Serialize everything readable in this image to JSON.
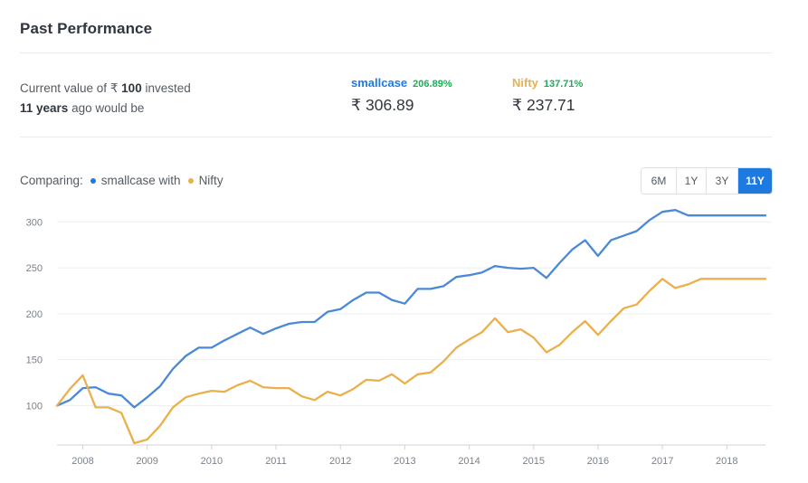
{
  "header": {
    "title": "Past Performance"
  },
  "summary": {
    "line1_prefix": "Current value of ",
    "currency": "₹",
    "amount": "100",
    "line1_suffix": " invested",
    "years": "11 years",
    "line2_suffix": " ago would be"
  },
  "stats": [
    {
      "name": "smallcase",
      "pct": "206.89%",
      "value": "₹ 306.89",
      "color": "#1f7ae0"
    },
    {
      "name": "Nifty",
      "pct": "137.71%",
      "value": "₹ 237.71",
      "color": "#e9b04c"
    }
  ],
  "comparing": {
    "label": "Comparing:",
    "series_a": "smallcase with",
    "series_b": "Nifty"
  },
  "periods": [
    {
      "label": "6M",
      "active": false
    },
    {
      "label": "1Y",
      "active": false
    },
    {
      "label": "3Y",
      "active": false
    },
    {
      "label": "11Y",
      "active": true
    }
  ],
  "chart_data": {
    "type": "line",
    "title": "",
    "xlabel": "",
    "ylabel": "",
    "x_ticks": [
      "2008",
      "2009",
      "2010",
      "2011",
      "2012",
      "2013",
      "2014",
      "2015",
      "2016",
      "2017",
      "2018"
    ],
    "y_ticks": [
      100,
      150,
      200,
      250,
      300
    ],
    "xlim": [
      2007.6,
      2018.6
    ],
    "ylim": [
      57,
      323
    ],
    "grid": "horizontal",
    "legend": "none",
    "series": [
      {
        "name": "smallcase",
        "color": "#4a89d6",
        "x": [
          2007.6,
          2007.8,
          2008.0,
          2008.2,
          2008.4,
          2008.6,
          2008.8,
          2009.0,
          2009.2,
          2009.4,
          2009.6,
          2009.8,
          2010.0,
          2010.2,
          2010.4,
          2010.6,
          2010.8,
          2011.0,
          2011.2,
          2011.4,
          2011.6,
          2011.8,
          2012.0,
          2012.2,
          2012.4,
          2012.6,
          2012.8,
          2013.0,
          2013.2,
          2013.4,
          2013.6,
          2013.8,
          2014.0,
          2014.2,
          2014.4,
          2014.6,
          2014.8,
          2015.0,
          2015.2,
          2015.4,
          2015.6,
          2015.8,
          2016.0,
          2016.2,
          2016.4,
          2016.6,
          2016.8,
          2017.0,
          2017.2,
          2017.4,
          2017.6,
          2017.8,
          2018.0,
          2018.2,
          2018.4,
          2018.6
        ],
        "y": [
          100,
          106,
          119,
          120,
          113,
          111,
          98,
          109,
          121,
          140,
          154,
          163,
          163,
          171,
          178,
          185,
          178,
          184,
          189,
          191,
          191,
          202,
          205,
          215,
          223,
          223,
          215,
          211,
          227,
          227,
          230,
          240,
          242,
          245,
          252,
          250,
          249,
          250,
          239,
          255,
          270,
          280,
          263,
          280,
          285,
          290,
          302,
          311,
          313,
          307,
          307,
          307,
          307,
          307,
          307,
          307
        ]
      },
      {
        "name": "Nifty",
        "color": "#e9b04c",
        "x": [
          2007.6,
          2007.8,
          2008.0,
          2008.2,
          2008.4,
          2008.6,
          2008.8,
          2009.0,
          2009.2,
          2009.4,
          2009.6,
          2009.8,
          2010.0,
          2010.2,
          2010.4,
          2010.6,
          2010.8,
          2011.0,
          2011.2,
          2011.4,
          2011.6,
          2011.8,
          2012.0,
          2012.2,
          2012.4,
          2012.6,
          2012.8,
          2013.0,
          2013.2,
          2013.4,
          2013.6,
          2013.8,
          2014.0,
          2014.2,
          2014.4,
          2014.6,
          2014.8,
          2015.0,
          2015.2,
          2015.4,
          2015.6,
          2015.8,
          2016.0,
          2016.2,
          2016.4,
          2016.6,
          2016.8,
          2017.0,
          2017.2,
          2017.4,
          2017.6,
          2017.8,
          2018.0,
          2018.2,
          2018.4,
          2018.6
        ],
        "y": [
          100,
          118,
          133,
          98,
          98,
          92,
          59,
          63,
          78,
          98,
          109,
          113,
          116,
          115,
          122,
          127,
          120,
          119,
          119,
          110,
          106,
          115,
          111,
          118,
          128,
          127,
          134,
          124,
          134,
          136,
          148,
          163,
          172,
          180,
          195,
          180,
          183,
          174,
          158,
          166,
          180,
          192,
          177,
          192,
          206,
          210,
          225,
          238,
          228,
          232,
          238,
          238,
          238,
          238,
          238,
          238
        ]
      }
    ]
  }
}
